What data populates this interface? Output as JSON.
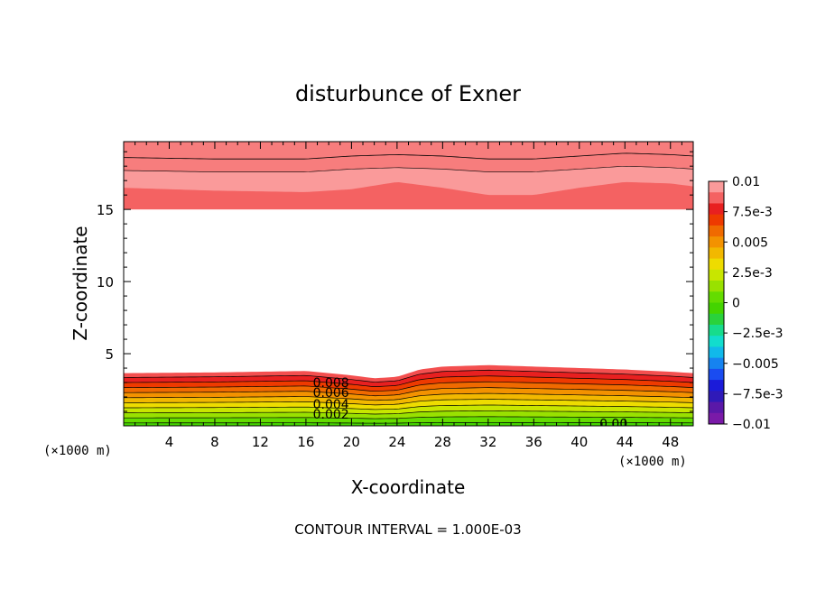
{
  "chart_data": {
    "type": "heatmap",
    "title": "disturbunce of Exner",
    "xlabel": "X-coordinate",
    "ylabel": "Z-coordinate",
    "x_unit_left": "(×1000 m)",
    "x_unit_right": "(×1000 m)",
    "footer": "CONTOUR INTERVAL = 1.000E-03",
    "xlim": [
      0,
      50
    ],
    "ylim": [
      0,
      19.7
    ],
    "x_ticks": [
      4,
      8,
      12,
      16,
      20,
      24,
      28,
      32,
      36,
      40,
      44,
      48
    ],
    "y_ticks": [
      5,
      10,
      15
    ],
    "x_tick_labels": [
      "4",
      "8",
      "12",
      "16",
      "20",
      "24",
      "28",
      "32",
      "36",
      "40",
      "44",
      "48"
    ],
    "y_tick_labels": [
      "5",
      "10",
      "15"
    ],
    "contour_labels": [
      {
        "text": "0.008",
        "x": 18.2,
        "z": 3.0
      },
      {
        "text": "0.006",
        "x": 18.2,
        "z": 2.3
      },
      {
        "text": "0.004",
        "x": 18.2,
        "z": 1.5
      },
      {
        "text": "0.002",
        "x": 18.2,
        "z": 0.8
      },
      {
        "text": "0.00",
        "x": 43.0,
        "z": 0.15
      }
    ],
    "lower_layer": {
      "x": [
        0,
        8,
        16,
        20,
        22,
        24,
        26,
        28,
        32,
        36,
        40,
        44,
        48,
        50
      ],
      "z_shift": [
        0.0,
        0.05,
        0.15,
        -0.15,
        -0.35,
        -0.25,
        0.25,
        0.45,
        0.55,
        0.45,
        0.35,
        0.25,
        0.1,
        0.0
      ],
      "base_levels": [
        0.2,
        0.55,
        0.9,
        1.25,
        1.6,
        1.95,
        2.3,
        2.65,
        3.0,
        3.35
      ],
      "top_of_anomaly": 3.65,
      "colors": [
        "#44d400",
        "#64dc00",
        "#99e100",
        "#c8e600",
        "#eedc00",
        "#f2b800",
        "#f39200",
        "#f06a00",
        "#ee3a00",
        "#e82020",
        "#f34f4f"
      ]
    },
    "upper_layer": {
      "x": [
        0,
        8,
        16,
        20,
        24,
        28,
        32,
        36,
        40,
        44,
        48,
        50
      ],
      "bottom_z": [
        16.5,
        16.3,
        16.2,
        16.4,
        16.9,
        16.5,
        16.0,
        16.0,
        16.5,
        16.9,
        16.8,
        16.6
      ],
      "line_z": [
        18.6,
        18.5,
        18.5,
        18.7,
        18.8,
        18.7,
        18.5,
        18.5,
        18.7,
        18.9,
        18.8,
        18.7
      ],
      "colors": [
        "#fa9a9a",
        "#f77d7d",
        "#f46262"
      ]
    },
    "colorbar": {
      "labels": [
        "0.01",
        "7.5e-3",
        "0.005",
        "2.5e-3",
        "0",
        "−2.5e-3",
        "−0.005",
        "−7.5e-3",
        "−0.01"
      ],
      "colors": [
        "#fa9a9a",
        "#f46262",
        "#e82020",
        "#ee3a00",
        "#f06a00",
        "#f39200",
        "#f2b800",
        "#eedc00",
        "#c8e600",
        "#99e100",
        "#64dc00",
        "#44d400",
        "#2ad23c",
        "#17dc8c",
        "#12ddcd",
        "#11b9ea",
        "#1683f0",
        "#1a4cf0",
        "#1b1bd9",
        "#2f1ab8",
        "#5a18a8",
        "#7a1aa8"
      ]
    }
  }
}
